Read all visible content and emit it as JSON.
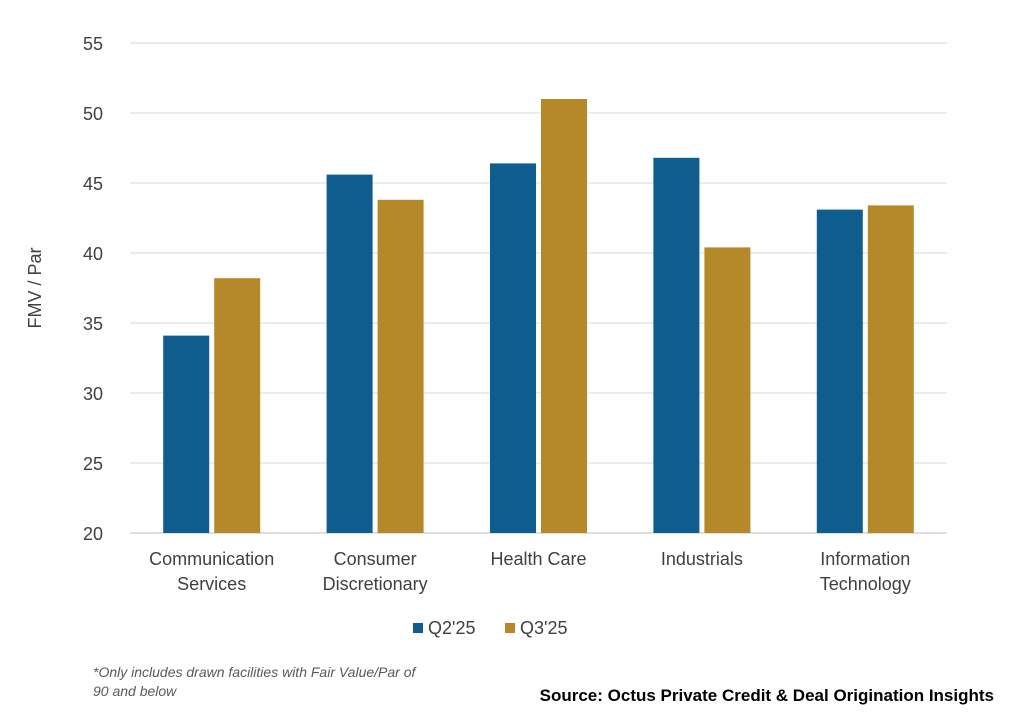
{
  "chart_data": {
    "type": "bar",
    "ylabel": "FMV / Par",
    "xlabel": "",
    "ylim": [
      20,
      55
    ],
    "yticks": [
      20,
      25,
      30,
      35,
      40,
      45,
      50,
      55
    ],
    "grid": true,
    "legend_position": "bottom",
    "categories": [
      [
        "Communication",
        "Services"
      ],
      [
        "Consumer",
        "Discretionary"
      ],
      [
        "Health Care"
      ],
      [
        "Industrials"
      ],
      [
        "Information",
        "Technology"
      ]
    ],
    "series": [
      {
        "name": "Q2'25",
        "color": "#0f5d8f",
        "values": [
          34.1,
          45.6,
          46.4,
          46.8,
          43.1
        ]
      },
      {
        "name": "Q3'25",
        "color": "#b5892a",
        "values": [
          38.2,
          43.8,
          51.0,
          40.4,
          43.4
        ]
      }
    ]
  },
  "footnote": "*Only includes drawn facilities with Fair Value/Par of 90 and below",
  "source": "Source: Octus Private Credit & Deal Origination Insights"
}
